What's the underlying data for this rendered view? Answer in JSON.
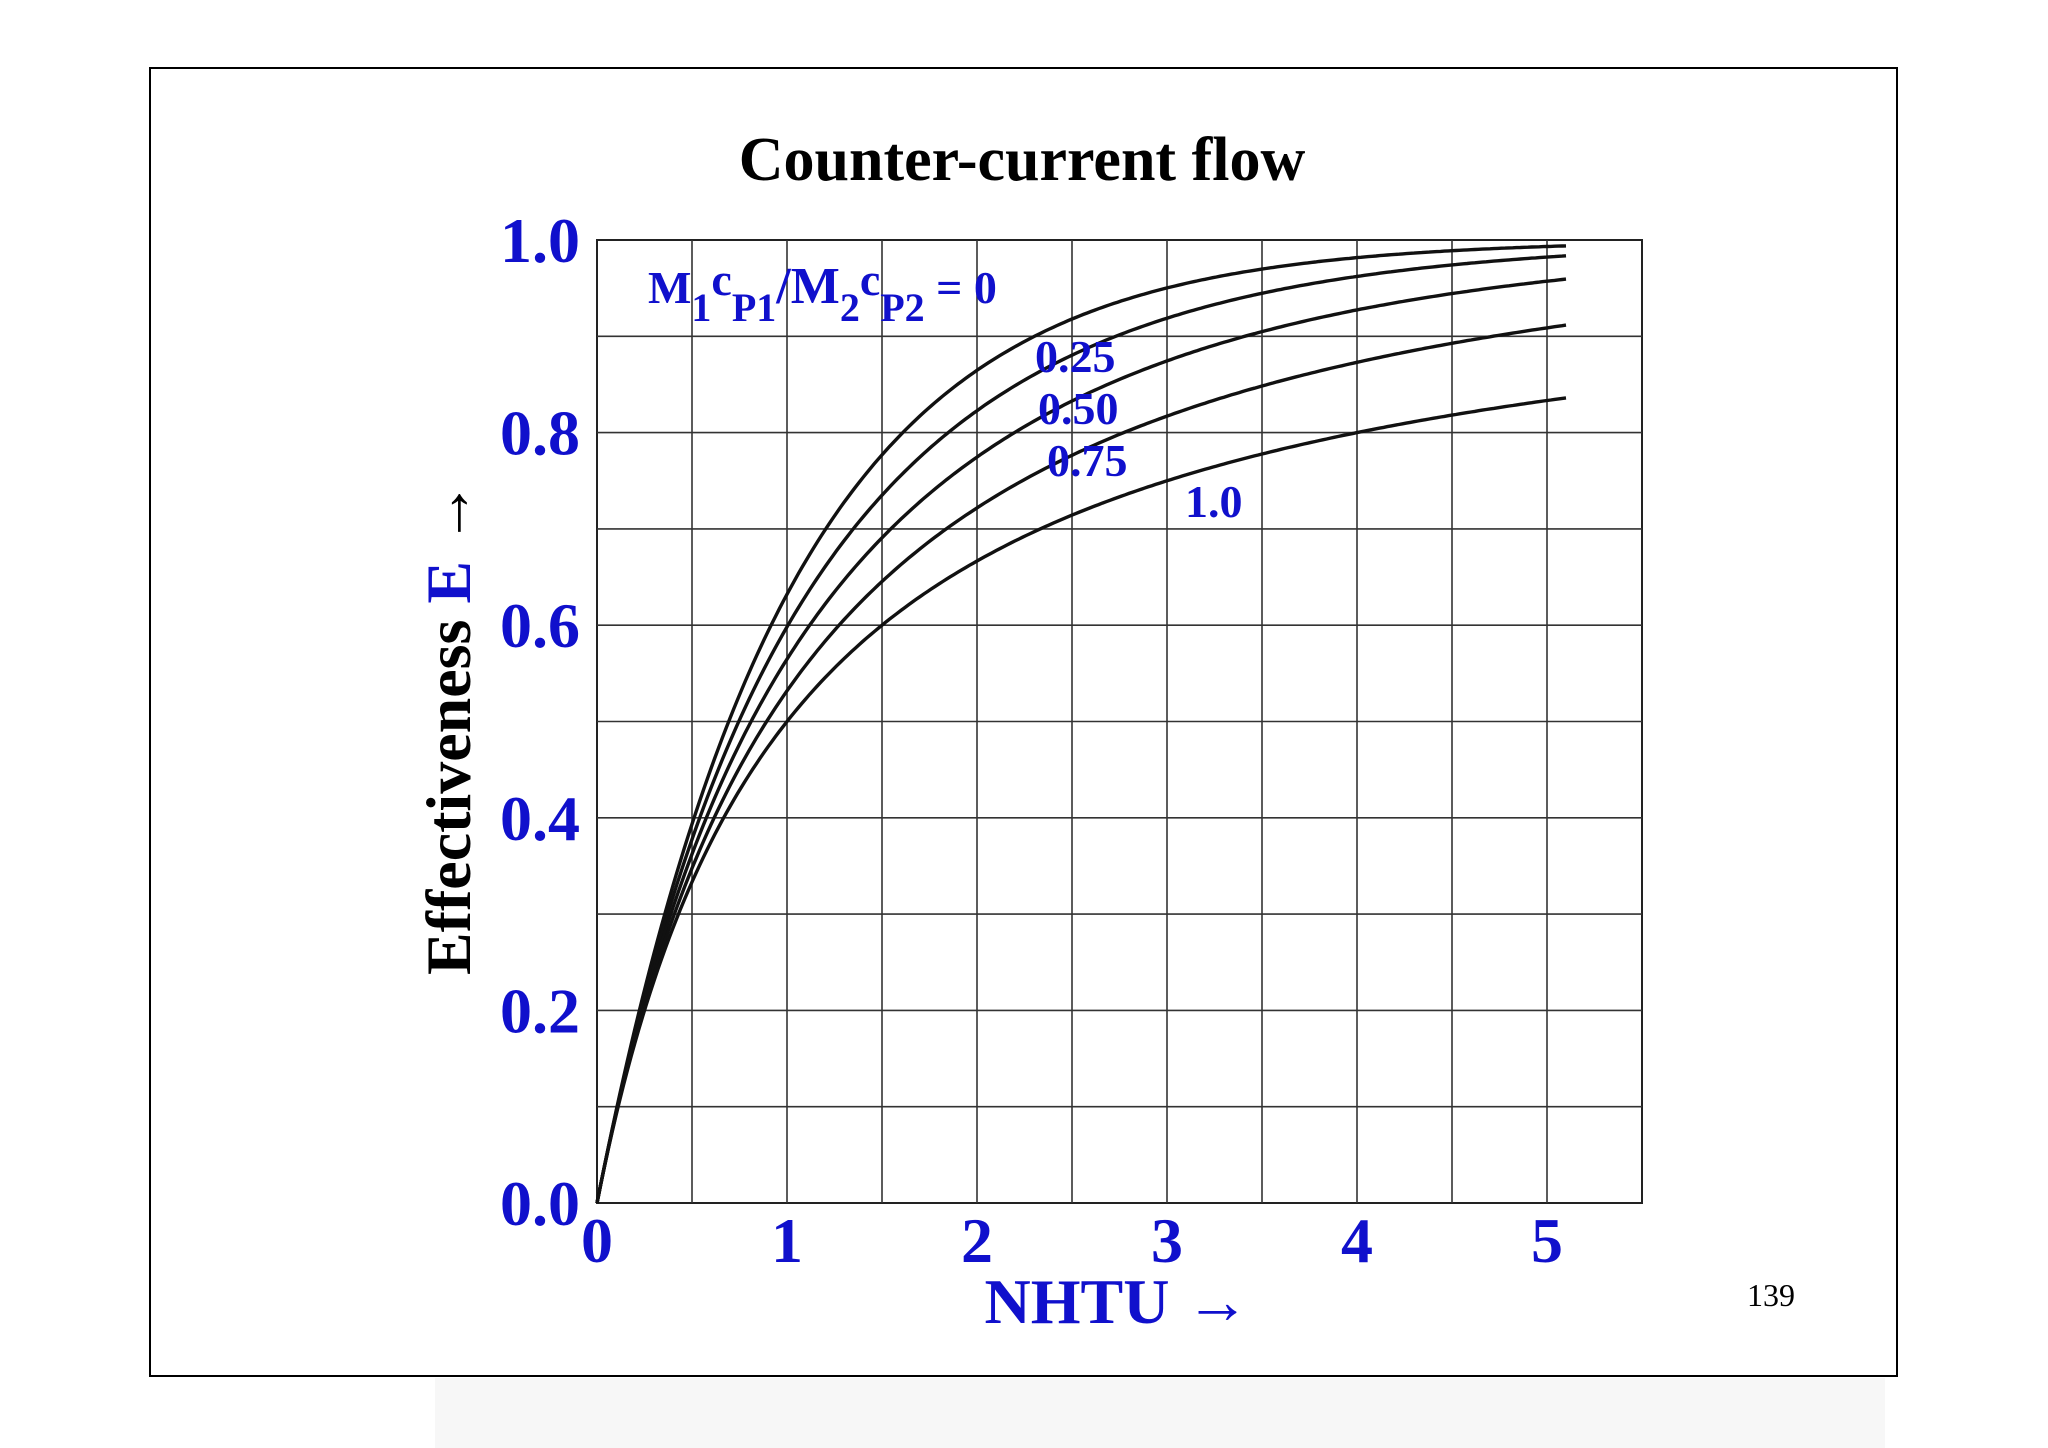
{
  "page_number": "139",
  "chart_data": {
    "type": "line",
    "title": "Counter-current flow",
    "xlabel": "NHTU →",
    "ylabel_prefix": "Effectiveness ",
    "ylabel_symbol": "E",
    "ylabel_arrow": " →",
    "xlim": [
      0,
      5.5
    ],
    "ylim": [
      0,
      1.0
    ],
    "x_ticks": [
      "0",
      "1",
      "2",
      "3",
      "4",
      "5"
    ],
    "y_ticks": [
      "0.0",
      "0.2",
      "0.4",
      "0.6",
      "0.8",
      "1.0"
    ],
    "grid": true,
    "legend_title": {
      "M": "M",
      "sub1": "1",
      "c1": "c",
      "subP1": "P1",
      "slash": "/M",
      "sub2": "2",
      "c2": "c",
      "subP2": "P2",
      "eq": " = 0"
    },
    "series": [
      {
        "name": "= 0",
        "ratio": 0.0,
        "x": [
          0,
          0.25,
          0.5,
          0.75,
          1,
          1.5,
          2,
          2.5,
          3,
          3.5,
          4,
          4.5,
          5,
          5.1
        ],
        "values": [
          0,
          0.221,
          0.393,
          0.528,
          0.632,
          0.777,
          0.865,
          0.918,
          0.95,
          0.97,
          0.982,
          0.989,
          0.993,
          0.994
        ]
      },
      {
        "name": "0.25",
        "ratio": 0.25,
        "x": [
          0,
          0.25,
          0.5,
          0.75,
          1,
          1.5,
          2,
          2.5,
          3,
          3.5,
          4,
          4.5,
          5,
          5.1
        ],
        "values": [
          0,
          0.215,
          0.375,
          0.497,
          0.592,
          0.727,
          0.816,
          0.877,
          0.918,
          0.946,
          0.964,
          0.976,
          0.984,
          0.986
        ]
      },
      {
        "name": "0.50",
        "ratio": 0.5,
        "x": [
          0,
          0.25,
          0.5,
          0.75,
          1,
          1.5,
          2,
          2.5,
          3,
          3.5,
          4,
          4.5,
          5,
          5.1
        ],
        "values": [
          0,
          0.209,
          0.358,
          0.469,
          0.553,
          0.679,
          0.768,
          0.832,
          0.879,
          0.912,
          0.936,
          0.953,
          0.966,
          0.968
        ]
      },
      {
        "name": "0.75",
        "ratio": 0.75,
        "x": [
          0,
          0.25,
          0.5,
          0.75,
          1,
          1.5,
          2,
          2.5,
          3,
          3.5,
          4,
          4.5,
          5,
          5.1
        ],
        "values": [
          0,
          0.204,
          0.343,
          0.443,
          0.519,
          0.634,
          0.718,
          0.783,
          0.831,
          0.868,
          0.895,
          0.916,
          0.932,
          0.935
        ]
      },
      {
        "name": "1.0",
        "ratio": 1.0,
        "x": [
          0,
          0.25,
          0.5,
          0.75,
          1,
          1.5,
          2,
          2.5,
          3,
          3.5,
          4,
          4.5,
          5,
          5.1
        ],
        "values": [
          0,
          0.2,
          0.333,
          0.429,
          0.5,
          0.6,
          0.667,
          0.714,
          0.75,
          0.778,
          0.8,
          0.818,
          0.833,
          0.836
        ]
      }
    ]
  }
}
